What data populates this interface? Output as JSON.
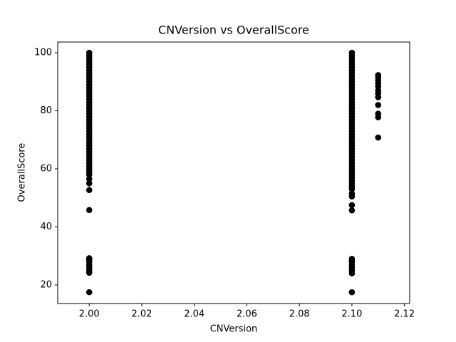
{
  "chart_data": {
    "type": "scatter",
    "title": "CNVersion vs OverallScore",
    "x_label": "CNVersion",
    "y_label": "OverallScore",
    "color": "#000000",
    "x": [
      2,
      2,
      2,
      2,
      2,
      2,
      2,
      2,
      2,
      2,
      2,
      2,
      2,
      2,
      2,
      2,
      2,
      2,
      2,
      2,
      2,
      2,
      2,
      2,
      2,
      2,
      2,
      2,
      2,
      2,
      2,
      2,
      2,
      2,
      2,
      2,
      2,
      2,
      2,
      2,
      2,
      2,
      2,
      2,
      2,
      2,
      2,
      2,
      2,
      2,
      2,
      2,
      2,
      2,
      2,
      2.1,
      2.1,
      2.1,
      2.1,
      2.1,
      2.1,
      2.1,
      2.1,
      2.1,
      2.1,
      2.1,
      2.1,
      2.1,
      2.1,
      2.1,
      2.1,
      2.1,
      2.1,
      2.1,
      2.1,
      2.1,
      2.1,
      2.1,
      2.1,
      2.1,
      2.1,
      2.1,
      2.1,
      2.1,
      2.1,
      2.1,
      2.1,
      2.1,
      2.1,
      2.1,
      2.1,
      2.1,
      2.1,
      2.1,
      2.1,
      2.1,
      2.1,
      2.1,
      2.1,
      2.1,
      2.1,
      2.1,
      2.1,
      2.1,
      2.1,
      2.1,
      2.1,
      2.1,
      2.1,
      2.1,
      2.1,
      2.1,
      2.1,
      2.1,
      2.1,
      2.11,
      2.11,
      2.11,
      2.11,
      2.11,
      2.11,
      2.11,
      2.11,
      2.11,
      2.11,
      2.11,
      2.11
    ],
    "y": [
      17.5,
      24.2,
      25,
      26,
      27,
      28,
      28.7,
      29.2,
      45.8,
      52.7,
      55,
      56.5,
      58,
      59,
      60,
      61,
      62,
      63,
      64,
      65,
      66,
      67,
      68,
      69,
      70,
      71,
      72,
      73,
      74,
      75,
      76,
      77,
      78,
      79,
      80,
      81,
      82,
      83,
      84,
      85,
      86,
      87,
      88,
      89,
      90,
      91,
      92,
      93,
      94,
      95,
      96,
      97,
      98,
      99,
      100,
      17.5,
      24,
      25,
      26,
      27,
      28,
      28.5,
      29,
      45.7,
      47.5,
      50.5,
      51.5,
      53,
      54,
      55,
      56,
      57,
      58,
      59,
      60,
      61,
      62,
      63,
      64,
      65,
      66,
      67,
      68,
      69,
      70,
      71,
      72,
      73,
      74,
      75,
      76,
      77,
      78,
      79,
      80,
      81,
      82,
      83,
      84,
      85,
      86,
      87,
      88,
      89,
      90,
      91,
      92,
      93,
      94,
      95,
      96,
      97,
      98,
      99,
      100,
      70.8,
      77.8,
      79,
      82,
      84.7,
      86,
      87,
      88.5,
      89.5,
      90.5,
      91.5,
      92.3
    ],
    "xlim": [
      1.988,
      2.122
    ],
    "ylim": [
      13.6,
      103.7
    ],
    "xticks": [
      {
        "value": 2,
        "label": "2.00"
      },
      {
        "value": 2.02,
        "label": "2.02"
      },
      {
        "value": 2.04,
        "label": "2.04"
      },
      {
        "value": 2.06,
        "label": "2.06"
      },
      {
        "value": 2.08,
        "label": "2.08"
      },
      {
        "value": 2.1,
        "label": "2.10"
      },
      {
        "value": 2.12,
        "label": "2.12"
      }
    ],
    "yticks": [
      20,
      40,
      60,
      80,
      100
    ]
  }
}
